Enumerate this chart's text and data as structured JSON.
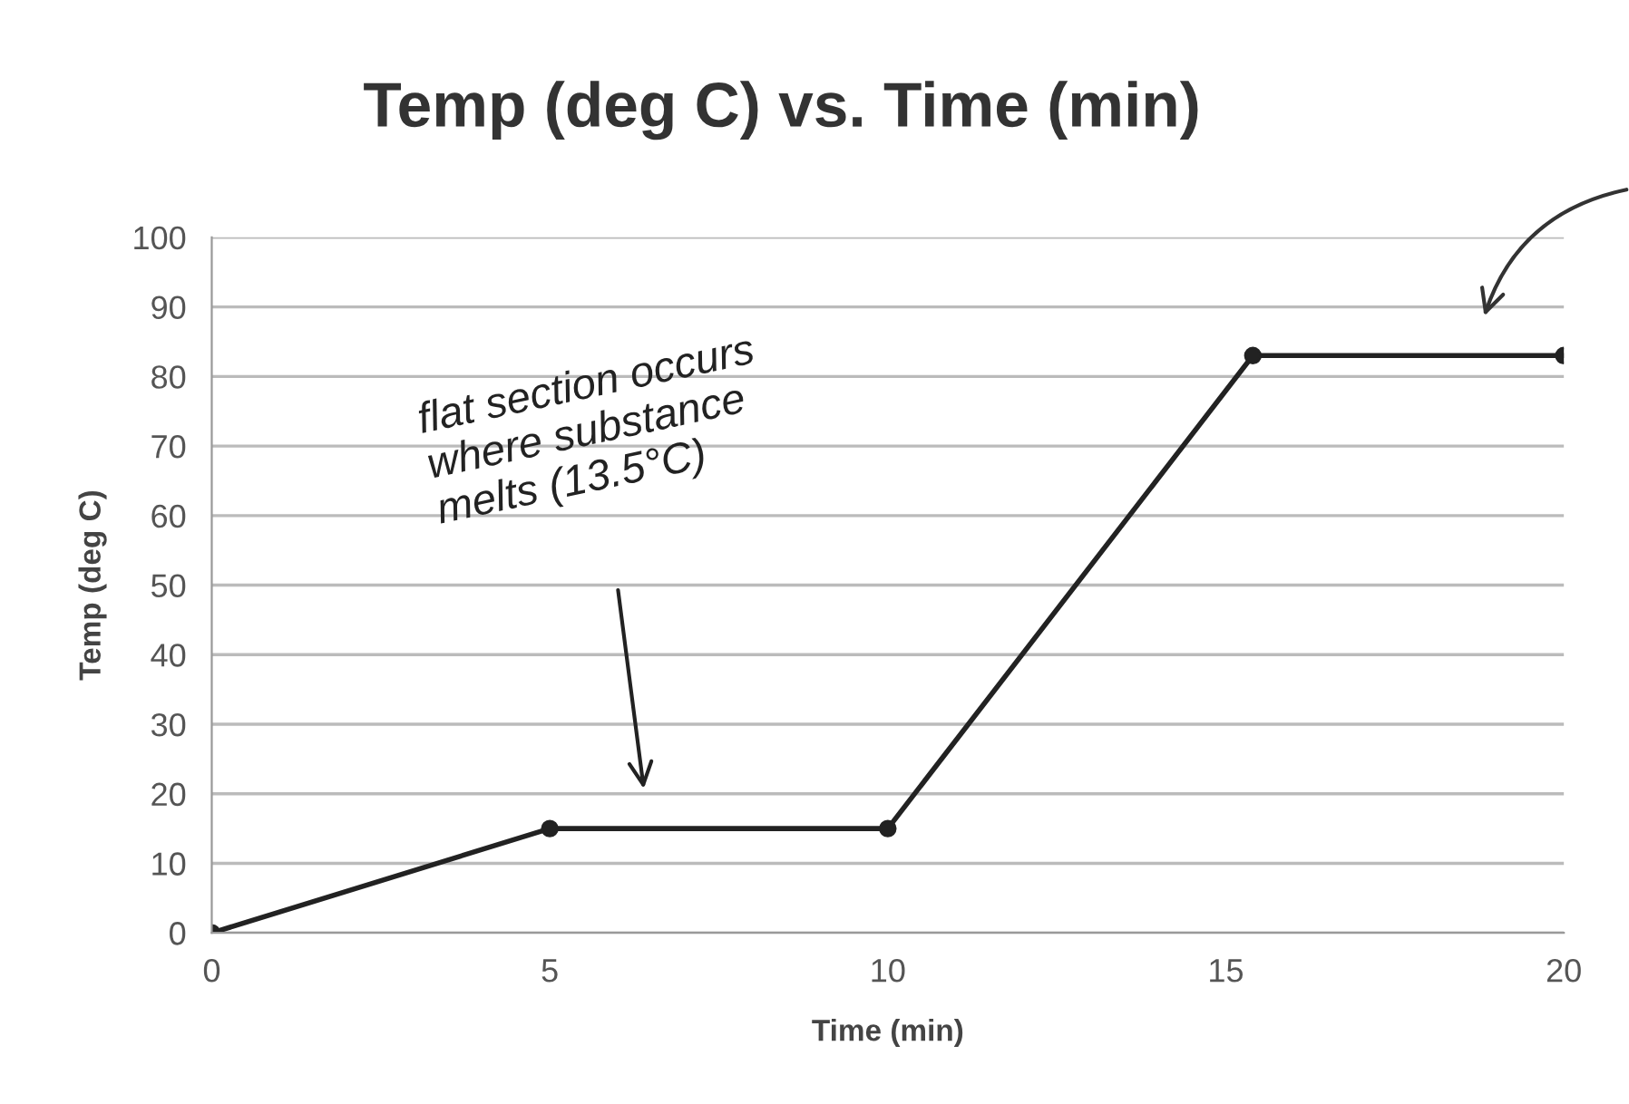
{
  "chart_data": {
    "type": "line",
    "title": "Temp (deg C) vs. Time (min)",
    "xlabel": "Time (min)",
    "ylabel": "Temp (deg C)",
    "x": [
      0,
      5,
      10,
      15.4,
      20
    ],
    "series": [
      {
        "color": "#222222",
        "values": [
          0,
          15,
          15,
          83,
          83
        ]
      }
    ],
    "xlim": [
      0,
      20
    ],
    "xticks": [
      0,
      5,
      10,
      15,
      20
    ],
    "ylim": [
      0,
      100
    ],
    "yticks": [
      0,
      10,
      20,
      30,
      40,
      50,
      60,
      70,
      80,
      90,
      100
    ],
    "grid": "y",
    "marker": "circle",
    "line_style": "solid",
    "annotations": [
      "flat section occurs\nwhere substance\nmelts (13.5°C)"
    ]
  }
}
